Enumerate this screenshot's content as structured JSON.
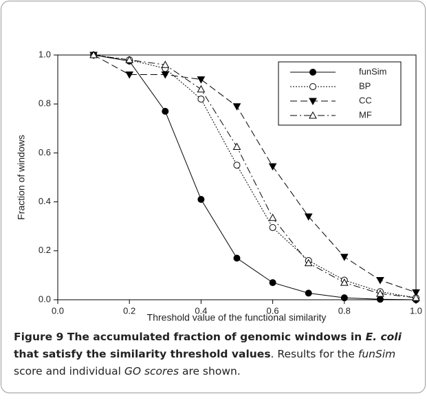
{
  "chart_data": {
    "type": "line",
    "xlabel": "Threshold value of the functional similarity",
    "ylabel": "Fraction of windows",
    "x": [
      0.1,
      0.2,
      0.3,
      0.4,
      0.5,
      0.6,
      0.7,
      0.8,
      0.9,
      1.0
    ],
    "series": [
      {
        "name": "funSim",
        "color": "#000000",
        "marker": "circle",
        "filled": true,
        "dash": "solid",
        "values": [
          1.0,
          0.975,
          0.77,
          0.41,
          0.17,
          0.07,
          0.027,
          0.008,
          0.002,
          0.0
        ]
      },
      {
        "name": "BP",
        "color": "#000000",
        "marker": "circle",
        "filled": false,
        "dash": "dotted",
        "values": [
          1.0,
          0.98,
          0.945,
          0.82,
          0.55,
          0.295,
          0.16,
          0.08,
          0.033,
          0.008
        ]
      },
      {
        "name": "CC",
        "color": "#000000",
        "marker": "triangle-down",
        "filled": true,
        "dash": "dashed",
        "values": [
          1.0,
          0.92,
          0.92,
          0.9,
          0.79,
          0.545,
          0.34,
          0.175,
          0.08,
          0.03
        ]
      },
      {
        "name": "MF",
        "color": "#000000",
        "marker": "triangle-up",
        "filled": false,
        "dash": "dashdot",
        "values": [
          1.0,
          0.98,
          0.96,
          0.86,
          0.625,
          0.335,
          0.15,
          0.07,
          0.025,
          0.008
        ]
      }
    ],
    "xlim": [
      0.0,
      1.0
    ],
    "ylim": [
      0.0,
      1.0
    ],
    "xticks": [
      {
        "value": 0.0,
        "label": "0.0"
      },
      0.2,
      0.4,
      0.6,
      0.8,
      {
        "value": 1.0,
        "label": "1.0"
      }
    ],
    "yticks": [
      {
        "value": 0.0,
        "label": "0.0"
      },
      0.2,
      0.4,
      0.6,
      0.8,
      {
        "value": 1.0,
        "label": "1.0"
      }
    ],
    "legend": "upper right",
    "grid": false
  },
  "caption": [
    {
      "text": "Figure 9 The accumulated fraction of genomic windows in ",
      "style": "bold"
    },
    {
      "text": "E. coli",
      "style": "bold-italic"
    },
    {
      "text": " that satisfy the similarity threshold values",
      "style": "bold"
    },
    {
      "text": ". Results for the ",
      "style": "normal"
    },
    {
      "text": "funSim",
      "style": "italic"
    },
    {
      "text": " score and individual ",
      "style": "normal"
    },
    {
      "text": "GO scores",
      "style": "italic"
    },
    {
      "text": " are shown.",
      "style": "normal"
    }
  ]
}
